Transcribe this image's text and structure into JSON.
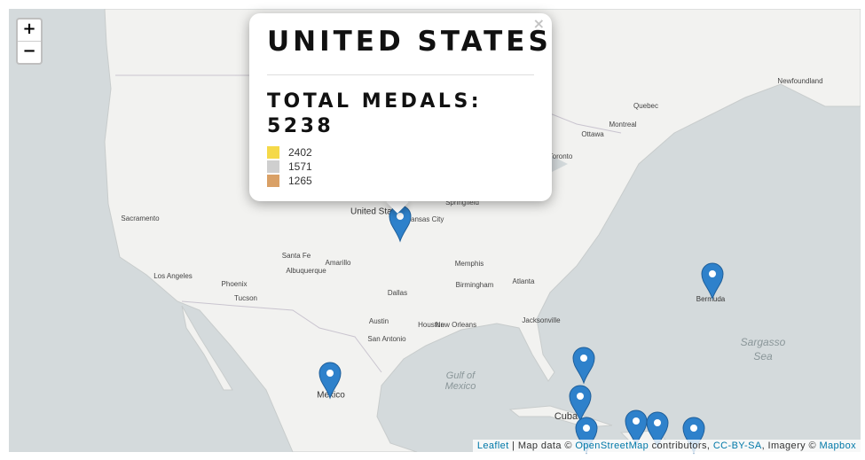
{
  "zoom": {
    "in": "+",
    "out": "−"
  },
  "popup": {
    "close": "×",
    "title": "UNITED STATES",
    "total_label": "TOTAL MEDALS:",
    "total": 5238,
    "medals": [
      {
        "value": 2402,
        "color": "#f5d949"
      },
      {
        "value": 1571,
        "color": "#cfcfcf"
      },
      {
        "value": 1265,
        "color": "#d9a066"
      }
    ]
  },
  "places": [
    "United States",
    "Mexico",
    "Cuba",
    "Bermuda",
    "Sargasso",
    "Sea",
    "Gulf of",
    "Mexico",
    "Memphis",
    "Dallas",
    "Austin",
    "San Antonio",
    "Houston",
    "New Orleans",
    "Jacksonville",
    "Atlanta",
    "Birmingham",
    "Ottawa",
    "Montreal",
    "Toronto",
    "Sacramento",
    "Los Angeles",
    "Phoenix",
    "Tucson",
    "Amarillo",
    "Santa Fe",
    "Albuquerque",
    "Kansas City",
    "Springfield",
    "Quebec",
    "Newfoundland"
  ],
  "attribution": [
    "Leaflet",
    " | Map data © ",
    "OpenStreetMap",
    " contributors, ",
    "CC-BY-SA",
    ", Imagery © ",
    "Mapbox"
  ]
}
